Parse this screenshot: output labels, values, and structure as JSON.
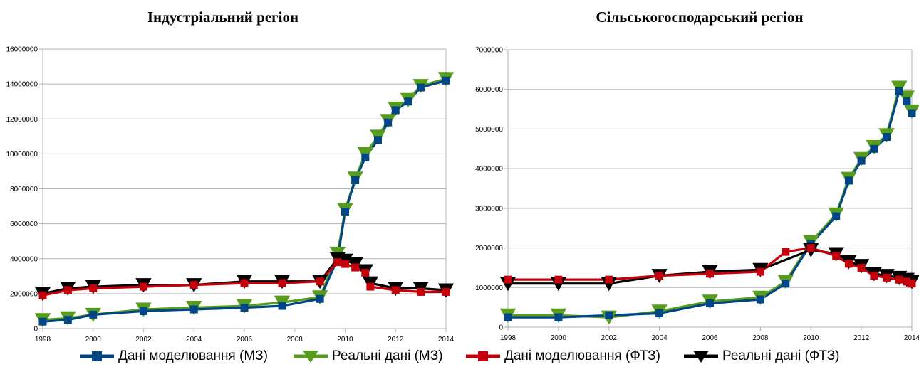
{
  "legend": [
    {
      "label": "Дані моделювання (МЗ)",
      "color": "#004586",
      "marker": "square"
    },
    {
      "label": "Реальні дані (МЗ)",
      "color": "#579d1c",
      "marker": "triangle-down"
    },
    {
      "label": "Дані моделювання (ФТЗ)",
      "color": "#c5000b",
      "marker": "square"
    },
    {
      "label": "Реальні дані (ФТЗ)",
      "color": "#000000",
      "marker": "triangle-down"
    }
  ],
  "chart_data": [
    {
      "type": "line",
      "title": "Індустріальний регіон",
      "xlabel": "",
      "ylabel": "",
      "xlim": [
        1998,
        2014
      ],
      "ylim": [
        0,
        16000000
      ],
      "x_ticks": [
        "1998",
        "2000",
        "2002",
        "2004",
        "2006",
        "2008",
        "2010",
        "2012",
        "2014"
      ],
      "y_ticks": [
        "0",
        "2000000",
        "4000000",
        "6000000",
        "8000000",
        "10000000",
        "12000000",
        "14000000",
        "16000000"
      ],
      "grid": "horizontal",
      "legend_position": "bottom",
      "series": [
        {
          "name": "Реальні дані (МЗ)",
          "color": "#579d1c",
          "marker": "triangle-down",
          "x": [
            1998,
            1999,
            2000,
            2002,
            2004,
            2006,
            2007.5,
            2009,
            2009.7,
            2010,
            2010.4,
            2010.8,
            2011.3,
            2011.7,
            2012,
            2012.5,
            2013,
            2014
          ],
          "y": [
            500000,
            600000,
            800000,
            1100000,
            1200000,
            1300000,
            1500000,
            1800000,
            4300000,
            6800000,
            8600000,
            10000000,
            11000000,
            11900000,
            12600000,
            13100000,
            13900000,
            14300000
          ]
        },
        {
          "name": "Дані моделювання (МЗ)",
          "color": "#004586",
          "marker": "square",
          "x": [
            1998,
            1999,
            2000,
            2002,
            2004,
            2006,
            2007.5,
            2009,
            2009.7,
            2010,
            2010.4,
            2010.8,
            2011.3,
            2011.7,
            2012,
            2012.5,
            2013,
            2014
          ],
          "y": [
            400000,
            500000,
            800000,
            1000000,
            1100000,
            1200000,
            1300000,
            1700000,
            4000000,
            6700000,
            8500000,
            9800000,
            10800000,
            11800000,
            12500000,
            13000000,
            13800000,
            14200000
          ]
        },
        {
          "name": "Реальні дані (ФТЗ)",
          "color": "#000000",
          "marker": "triangle-down",
          "x": [
            1998,
            1999,
            2000,
            2002,
            2004,
            2006,
            2007.5,
            2009,
            2009.7,
            2010,
            2010.4,
            2010.8,
            2011,
            2012,
            2013,
            2014
          ],
          "y": [
            2000000,
            2300000,
            2400000,
            2500000,
            2500000,
            2700000,
            2700000,
            2700000,
            4000000,
            3900000,
            3700000,
            3300000,
            2600000,
            2300000,
            2300000,
            2200000
          ]
        },
        {
          "name": "Дані моделювання (ФТЗ)",
          "color": "#c5000b",
          "marker": "square",
          "x": [
            1998,
            1999,
            2000,
            2002,
            2004,
            2006,
            2007.5,
            2009,
            2009.7,
            2010,
            2010.4,
            2010.8,
            2011,
            2012,
            2013,
            2014
          ],
          "y": [
            1900000,
            2200000,
            2300000,
            2400000,
            2500000,
            2600000,
            2600000,
            2700000,
            3800000,
            3700000,
            3500000,
            3200000,
            2400000,
            2200000,
            2100000,
            2100000
          ]
        }
      ]
    },
    {
      "type": "line",
      "title": "Сільськогосподарський регіон",
      "xlabel": "",
      "ylabel": "",
      "xlim": [
        1998,
        2014
      ],
      "ylim": [
        0,
        7000000
      ],
      "x_ticks": [
        "1998",
        "2000",
        "2002",
        "2004",
        "2006",
        "2008",
        "2010",
        "2012",
        "2014"
      ],
      "y_ticks": [
        "0",
        "1000000",
        "2000000",
        "3000000",
        "4000000",
        "5000000",
        "6000000",
        "7000000"
      ],
      "grid": "horizontal",
      "legend_position": "bottom",
      "series": [
        {
          "name": "Реальні дані (МЗ)",
          "color": "#579d1c",
          "marker": "triangle-down",
          "x": [
            1998,
            2000,
            2002,
            2004,
            2006,
            2008,
            2009,
            2010,
            2011,
            2011.5,
            2012,
            2012.5,
            2013,
            2013.5,
            2013.8,
            2014
          ],
          "y": [
            300000,
            300000,
            250000,
            400000,
            650000,
            750000,
            1150000,
            2150000,
            2850000,
            3750000,
            4250000,
            4550000,
            4850000,
            6050000,
            5800000,
            5450000
          ]
        },
        {
          "name": "Дані моделювання (МЗ)",
          "color": "#004586",
          "marker": "square",
          "x": [
            1998,
            2000,
            2002,
            2004,
            2006,
            2008,
            2009,
            2010,
            2011,
            2011.5,
            2012,
            2012.5,
            2013,
            2013.5,
            2013.8,
            2014
          ],
          "y": [
            250000,
            250000,
            300000,
            350000,
            600000,
            700000,
            1100000,
            2100000,
            2800000,
            3700000,
            4200000,
            4500000,
            4800000,
            5950000,
            5700000,
            5400000
          ]
        },
        {
          "name": "Реальні дані (ФТЗ)",
          "color": "#000000",
          "marker": "triangle-down",
          "x": [
            1998,
            2000,
            2002,
            2004,
            2006,
            2008,
            2010,
            2011,
            2011.5,
            2012,
            2012.5,
            2013,
            2013.5,
            2013.8,
            2014
          ],
          "y": [
            1100000,
            1100000,
            1100000,
            1300000,
            1400000,
            1450000,
            1950000,
            1850000,
            1650000,
            1550000,
            1350000,
            1300000,
            1250000,
            1200000,
            1150000
          ]
        },
        {
          "name": "Дані моделювання (ФТЗ)",
          "color": "#c5000b",
          "marker": "square",
          "x": [
            1998,
            2000,
            2002,
            2004,
            2006,
            2008,
            2009,
            2010,
            2011,
            2011.5,
            2012,
            2012.5,
            2013,
            2013.5,
            2013.8,
            2014
          ],
          "y": [
            1200000,
            1200000,
            1200000,
            1300000,
            1350000,
            1400000,
            1900000,
            2000000,
            1800000,
            1600000,
            1500000,
            1300000,
            1250000,
            1200000,
            1150000,
            1100000
          ]
        }
      ]
    }
  ]
}
